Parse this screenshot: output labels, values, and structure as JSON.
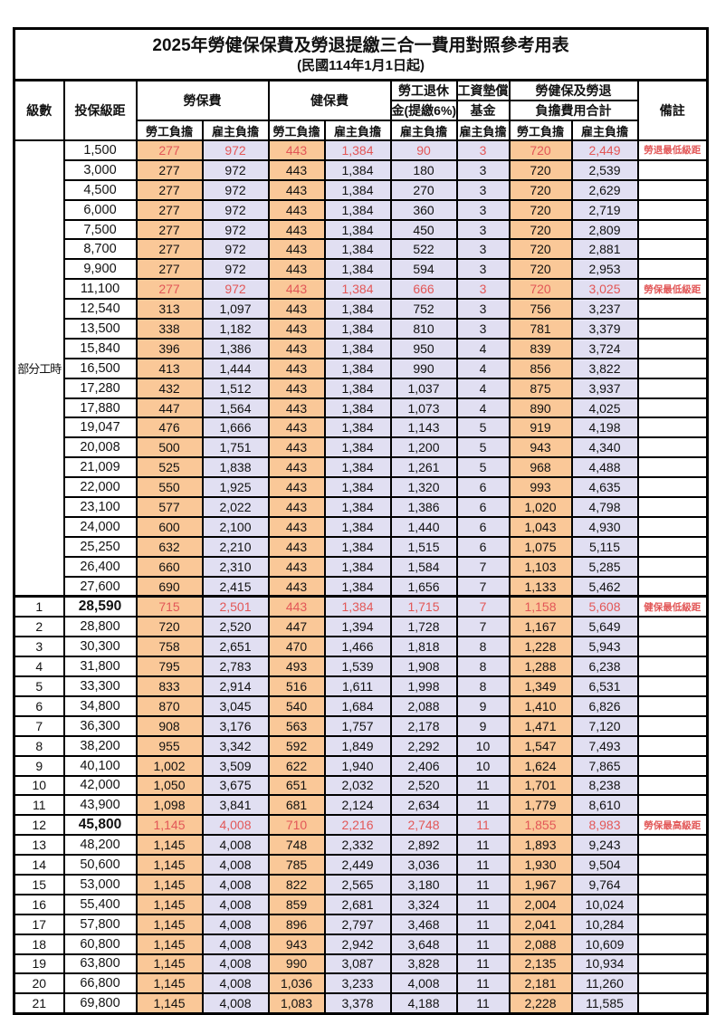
{
  "title": {
    "line1": "2025年勞健保保費及勞退提繳三合一費用對照參考用表",
    "line2": "(民國114年1月1日起)"
  },
  "header": {
    "level": "級數",
    "bracket": "投保級距",
    "labor_fee": "勞保費",
    "health_fee": "健保費",
    "pension_top": "勞工退休",
    "pension_bottom": "金(提繳6%)",
    "fund_top": "工資墊償",
    "fund_bottom": "基金",
    "total_top": "勞健保及勞退",
    "total_bottom": "負擔費用合計",
    "employee": "勞工負擔",
    "employer": "雇主負擔",
    "remark": "備註"
  },
  "part_time_label": "部分工時",
  "part_time_rowspan": 23,
  "colors": {
    "employee_bg": "#FAC898",
    "employer_bg": "#E1DFF2",
    "red_text": "#E25757",
    "border": "#000000"
  },
  "rows": [
    {
      "lv": "",
      "br": "1,500",
      "v": [
        "277",
        "972",
        "443",
        "1,384",
        "90",
        "3",
        "720",
        "2,449"
      ],
      "rm": "勞退最低級距",
      "red": true
    },
    {
      "lv": "",
      "br": "3,000",
      "v": [
        "277",
        "972",
        "443",
        "1,384",
        "180",
        "3",
        "720",
        "2,539"
      ],
      "rm": ""
    },
    {
      "lv": "",
      "br": "4,500",
      "v": [
        "277",
        "972",
        "443",
        "1,384",
        "270",
        "3",
        "720",
        "2,629"
      ],
      "rm": ""
    },
    {
      "lv": "",
      "br": "6,000",
      "v": [
        "277",
        "972",
        "443",
        "1,384",
        "360",
        "3",
        "720",
        "2,719"
      ],
      "rm": ""
    },
    {
      "lv": "",
      "br": "7,500",
      "v": [
        "277",
        "972",
        "443",
        "1,384",
        "450",
        "3",
        "720",
        "2,809"
      ],
      "rm": ""
    },
    {
      "lv": "",
      "br": "8,700",
      "v": [
        "277",
        "972",
        "443",
        "1,384",
        "522",
        "3",
        "720",
        "2,881"
      ],
      "rm": ""
    },
    {
      "lv": "",
      "br": "9,900",
      "v": [
        "277",
        "972",
        "443",
        "1,384",
        "594",
        "3",
        "720",
        "2,953"
      ],
      "rm": ""
    },
    {
      "lv": "",
      "br": "11,100",
      "v": [
        "277",
        "972",
        "443",
        "1,384",
        "666",
        "3",
        "720",
        "3,025"
      ],
      "rm": "勞保最低級距",
      "red": true
    },
    {
      "lv": "",
      "br": "12,540",
      "v": [
        "313",
        "1,097",
        "443",
        "1,384",
        "752",
        "3",
        "756",
        "3,237"
      ],
      "rm": ""
    },
    {
      "lv": "",
      "br": "13,500",
      "v": [
        "338",
        "1,182",
        "443",
        "1,384",
        "810",
        "3",
        "781",
        "3,379"
      ],
      "rm": ""
    },
    {
      "lv": "",
      "br": "15,840",
      "v": [
        "396",
        "1,386",
        "443",
        "1,384",
        "950",
        "4",
        "839",
        "3,724"
      ],
      "rm": ""
    },
    {
      "lv": "",
      "br": "16,500",
      "v": [
        "413",
        "1,444",
        "443",
        "1,384",
        "990",
        "4",
        "856",
        "3,822"
      ],
      "rm": ""
    },
    {
      "lv": "",
      "br": "17,280",
      "v": [
        "432",
        "1,512",
        "443",
        "1,384",
        "1,037",
        "4",
        "875",
        "3,937"
      ],
      "rm": ""
    },
    {
      "lv": "",
      "br": "17,880",
      "v": [
        "447",
        "1,564",
        "443",
        "1,384",
        "1,073",
        "4",
        "890",
        "4,025"
      ],
      "rm": ""
    },
    {
      "lv": "",
      "br": "19,047",
      "v": [
        "476",
        "1,666",
        "443",
        "1,384",
        "1,143",
        "5",
        "919",
        "4,198"
      ],
      "rm": ""
    },
    {
      "lv": "",
      "br": "20,008",
      "v": [
        "500",
        "1,751",
        "443",
        "1,384",
        "1,200",
        "5",
        "943",
        "4,340"
      ],
      "rm": ""
    },
    {
      "lv": "",
      "br": "21,009",
      "v": [
        "525",
        "1,838",
        "443",
        "1,384",
        "1,261",
        "5",
        "968",
        "4,488"
      ],
      "rm": ""
    },
    {
      "lv": "",
      "br": "22,000",
      "v": [
        "550",
        "1,925",
        "443",
        "1,384",
        "1,320",
        "6",
        "993",
        "4,635"
      ],
      "rm": ""
    },
    {
      "lv": "",
      "br": "23,100",
      "v": [
        "577",
        "2,022",
        "443",
        "1,384",
        "1,386",
        "6",
        "1,020",
        "4,798"
      ],
      "rm": ""
    },
    {
      "lv": "",
      "br": "24,000",
      "v": [
        "600",
        "2,100",
        "443",
        "1,384",
        "1,440",
        "6",
        "1,043",
        "4,930"
      ],
      "rm": ""
    },
    {
      "lv": "",
      "br": "25,250",
      "v": [
        "632",
        "2,210",
        "443",
        "1,384",
        "1,515",
        "6",
        "1,075",
        "5,115"
      ],
      "rm": ""
    },
    {
      "lv": "",
      "br": "26,400",
      "v": [
        "660",
        "2,310",
        "443",
        "1,384",
        "1,584",
        "7",
        "1,103",
        "5,285"
      ],
      "rm": ""
    },
    {
      "lv": "",
      "br": "27,600",
      "v": [
        "690",
        "2,415",
        "443",
        "1,384",
        "1,656",
        "7",
        "1,133",
        "5,462"
      ],
      "rm": ""
    },
    {
      "lv": "1",
      "br": "28,590",
      "v": [
        "715",
        "2,501",
        "443",
        "1,384",
        "1,715",
        "7",
        "1,158",
        "5,608"
      ],
      "rm": "健保最低級距",
      "red": true,
      "emph": true,
      "sep": true
    },
    {
      "lv": "2",
      "br": "28,800",
      "v": [
        "720",
        "2,520",
        "447",
        "1,394",
        "1,728",
        "7",
        "1,167",
        "5,649"
      ],
      "rm": ""
    },
    {
      "lv": "3",
      "br": "30,300",
      "v": [
        "758",
        "2,651",
        "470",
        "1,466",
        "1,818",
        "8",
        "1,228",
        "5,943"
      ],
      "rm": ""
    },
    {
      "lv": "4",
      "br": "31,800",
      "v": [
        "795",
        "2,783",
        "493",
        "1,539",
        "1,908",
        "8",
        "1,288",
        "6,238"
      ],
      "rm": ""
    },
    {
      "lv": "5",
      "br": "33,300",
      "v": [
        "833",
        "2,914",
        "516",
        "1,611",
        "1,998",
        "8",
        "1,349",
        "6,531"
      ],
      "rm": ""
    },
    {
      "lv": "6",
      "br": "34,800",
      "v": [
        "870",
        "3,045",
        "540",
        "1,684",
        "2,088",
        "9",
        "1,410",
        "6,826"
      ],
      "rm": ""
    },
    {
      "lv": "7",
      "br": "36,300",
      "v": [
        "908",
        "3,176",
        "563",
        "1,757",
        "2,178",
        "9",
        "1,471",
        "7,120"
      ],
      "rm": ""
    },
    {
      "lv": "8",
      "br": "38,200",
      "v": [
        "955",
        "3,342",
        "592",
        "1,849",
        "2,292",
        "10",
        "1,547",
        "7,493"
      ],
      "rm": ""
    },
    {
      "lv": "9",
      "br": "40,100",
      "v": [
        "1,002",
        "3,509",
        "622",
        "1,940",
        "2,406",
        "10",
        "1,624",
        "7,865"
      ],
      "rm": ""
    },
    {
      "lv": "10",
      "br": "42,000",
      "v": [
        "1,050",
        "3,675",
        "651",
        "2,032",
        "2,520",
        "11",
        "1,701",
        "8,238"
      ],
      "rm": ""
    },
    {
      "lv": "11",
      "br": "43,900",
      "v": [
        "1,098",
        "3,841",
        "681",
        "2,124",
        "2,634",
        "11",
        "1,779",
        "8,610"
      ],
      "rm": ""
    },
    {
      "lv": "12",
      "br": "45,800",
      "v": [
        "1,145",
        "4,008",
        "710",
        "2,216",
        "2,748",
        "11",
        "1,855",
        "8,983"
      ],
      "rm": "勞保最高級距",
      "red": true,
      "emph": true
    },
    {
      "lv": "13",
      "br": "48,200",
      "v": [
        "1,145",
        "4,008",
        "748",
        "2,332",
        "2,892",
        "11",
        "1,893",
        "9,243"
      ],
      "rm": ""
    },
    {
      "lv": "14",
      "br": "50,600",
      "v": [
        "1,145",
        "4,008",
        "785",
        "2,449",
        "3,036",
        "11",
        "1,930",
        "9,504"
      ],
      "rm": ""
    },
    {
      "lv": "15",
      "br": "53,000",
      "v": [
        "1,145",
        "4,008",
        "822",
        "2,565",
        "3,180",
        "11",
        "1,967",
        "9,764"
      ],
      "rm": ""
    },
    {
      "lv": "16",
      "br": "55,400",
      "v": [
        "1,145",
        "4,008",
        "859",
        "2,681",
        "3,324",
        "11",
        "2,004",
        "10,024"
      ],
      "rm": ""
    },
    {
      "lv": "17",
      "br": "57,800",
      "v": [
        "1,145",
        "4,008",
        "896",
        "2,797",
        "3,468",
        "11",
        "2,041",
        "10,284"
      ],
      "rm": ""
    },
    {
      "lv": "18",
      "br": "60,800",
      "v": [
        "1,145",
        "4,008",
        "943",
        "2,942",
        "3,648",
        "11",
        "2,088",
        "10,609"
      ],
      "rm": ""
    },
    {
      "lv": "19",
      "br": "63,800",
      "v": [
        "1,145",
        "4,008",
        "990",
        "3,087",
        "3,828",
        "11",
        "2,135",
        "10,934"
      ],
      "rm": ""
    },
    {
      "lv": "20",
      "br": "66,800",
      "v": [
        "1,145",
        "4,008",
        "1,036",
        "3,233",
        "4,008",
        "11",
        "2,181",
        "11,260"
      ],
      "rm": ""
    },
    {
      "lv": "21",
      "br": "69,800",
      "v": [
        "1,145",
        "4,008",
        "1,083",
        "3,378",
        "4,188",
        "11",
        "2,228",
        "11,585"
      ],
      "rm": ""
    }
  ]
}
